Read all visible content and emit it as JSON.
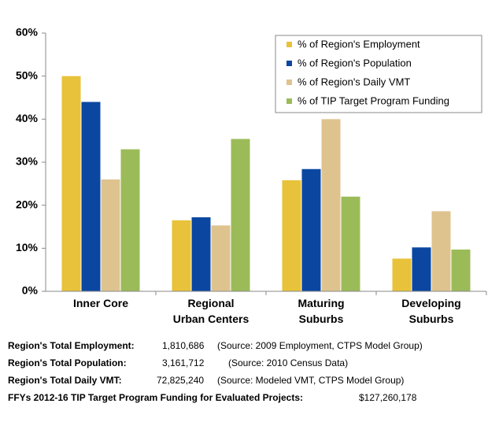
{
  "chart_data": {
    "type": "bar",
    "categories": [
      [
        "Inner Core"
      ],
      [
        "Regional",
        "Urban Centers"
      ],
      [
        "Maturing",
        "Suburbs"
      ],
      [
        "Developing",
        "Suburbs"
      ]
    ],
    "series": [
      {
        "name": "% of Region's Employment",
        "color": "#e8c23a",
        "values": [
          50,
          16.5,
          25.8,
          7.6
        ]
      },
      {
        "name": "% of Region's Population",
        "color": "#0b47a1",
        "values": [
          44,
          17.2,
          28.4,
          10.2
        ]
      },
      {
        "name": "% of Region's Daily VMT",
        "color": "#dfc38f",
        "values": [
          26,
          15.3,
          40,
          18.6
        ]
      },
      {
        "name": "% of TIP Target Program Funding",
        "color": "#9bbb59",
        "values": [
          33,
          35.4,
          22,
          9.7
        ]
      }
    ],
    "ylim": [
      0,
      60
    ],
    "yticks": [
      {
        "value": 0,
        "label": "0%"
      },
      {
        "value": 10,
        "label": "10%"
      },
      {
        "value": 20,
        "label": "20%"
      },
      {
        "value": 30,
        "label": "30%"
      },
      {
        "value": 40,
        "label": "40%"
      },
      {
        "value": 50,
        "label": "50%"
      },
      {
        "value": 60,
        "label": "60%"
      }
    ],
    "grid": false,
    "legend": "top-right",
    "notes": [
      {
        "label": "Region's Total Employment:",
        "value": "1,810,686",
        "source": "(Source: 2009 Employment, CTPS Model Group)"
      },
      {
        "label": "Region's Total Population:",
        "value": "3,161,712",
        "source": "(Source: 2010 Census Data)"
      },
      {
        "label": "Region's Total Daily VMT:",
        "value": "72,825,240",
        "source": "(Source: Modeled VMT, CTPS Model Group)"
      },
      {
        "label": "FFYs 2012-16 TIP Target Program Funding for Evaluated Projects:",
        "value": "$127,260,178"
      }
    ]
  }
}
